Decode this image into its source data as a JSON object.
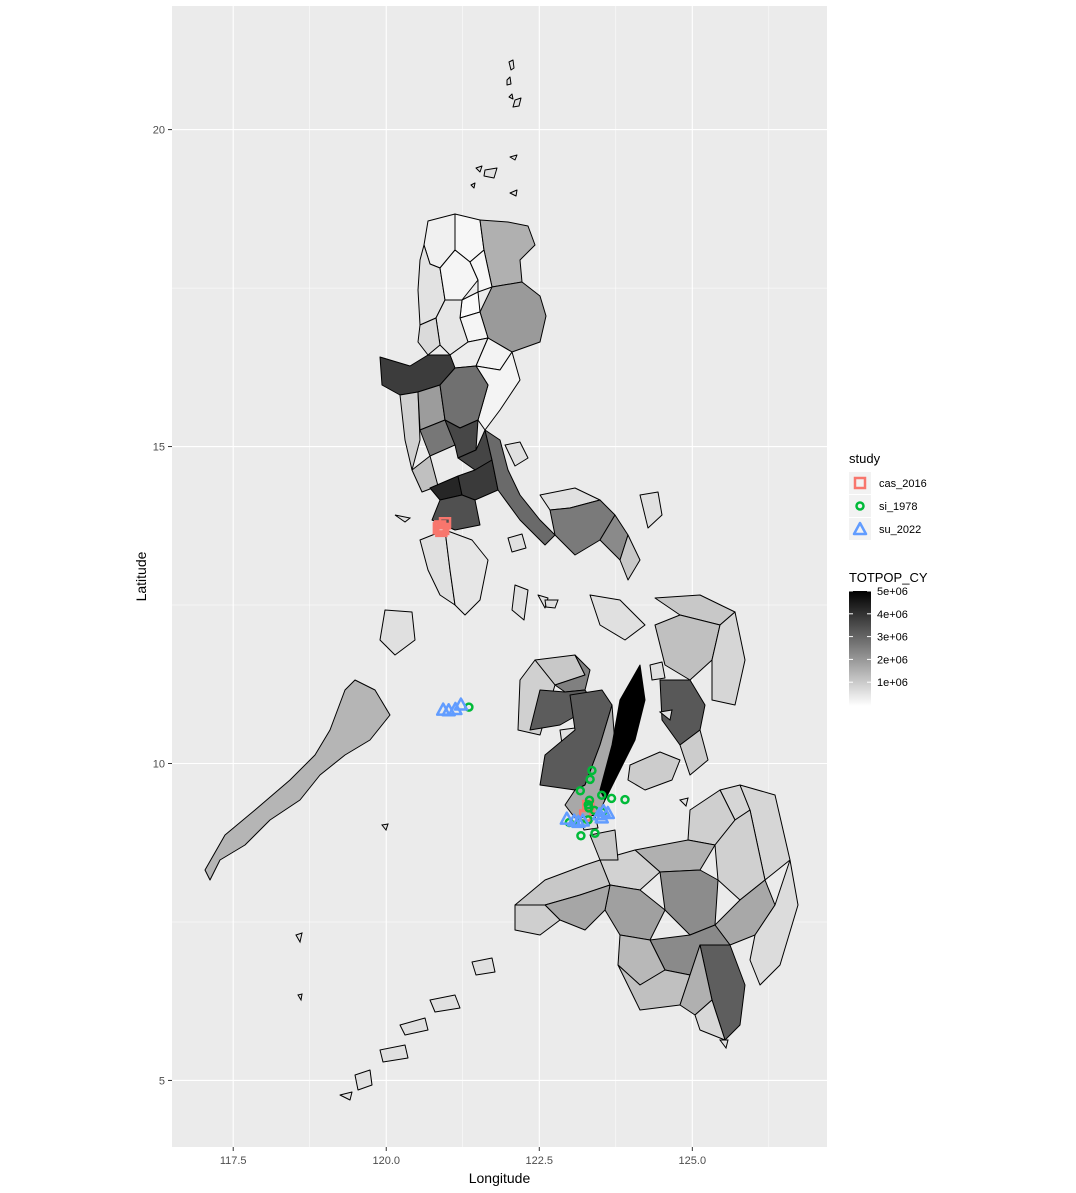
{
  "chart_data": {
    "type": "scatter",
    "title": "",
    "xlabel": "Longitude",
    "ylabel": "Latitude",
    "xlim": [
      116.5,
      127.2
    ],
    "ylim": [
      3.95,
      21.95
    ],
    "x_ticks": [
      117.5,
      120.0,
      122.5,
      125.0
    ],
    "x_tick_labels": [
      "117.5",
      "120.0",
      "122.5",
      "125.0"
    ],
    "y_ticks": [
      5,
      10,
      15,
      20
    ],
    "y_tick_labels": [
      "5",
      "10",
      "15",
      "20"
    ],
    "grid": true,
    "background": "#ebebeb",
    "legend_position": "right",
    "legend": {
      "title": "study",
      "entries": [
        {
          "label": "cas_2016",
          "color": "#F8766D",
          "shape": "square"
        },
        {
          "label": "si_1978",
          "color": "#00BA38",
          "shape": "circle"
        },
        {
          "label": "su_2022",
          "color": "#619CFF",
          "shape": "triangle"
        }
      ]
    },
    "fill_legend": {
      "title": "TOTPOP_CY",
      "labels": [
        "5e+06",
        "4e+06",
        "3e+06",
        "2e+06",
        "1e+06"
      ],
      "values": [
        5000000,
        4000000,
        3000000,
        2000000,
        1000000
      ],
      "range": [
        0,
        5000000
      ],
      "low_color": "#ffffff",
      "high_color": "#000000"
    },
    "series": [
      {
        "name": "cas_2016",
        "shape": "square",
        "color": "#F8766D",
        "points": [
          [
            120.88,
            13.74
          ],
          [
            120.93,
            13.7
          ],
          [
            120.9,
            13.67
          ],
          [
            120.96,
            13.79
          ],
          [
            120.86,
            13.71
          ],
          [
            123.3,
            9.33
          ],
          [
            123.25,
            9.18
          ]
        ]
      },
      {
        "name": "si_1978",
        "shape": "circle",
        "color": "#00BA38",
        "points": [
          [
            123.36,
            9.89
          ],
          [
            123.33,
            9.75
          ],
          [
            123.17,
            9.57
          ],
          [
            123.32,
            9.42
          ],
          [
            123.3,
            9.35
          ],
          [
            123.31,
            9.3
          ],
          [
            123.52,
            9.5
          ],
          [
            123.68,
            9.45
          ],
          [
            123.9,
            9.43
          ],
          [
            122.99,
            9.07
          ],
          [
            123.16,
            9.06
          ],
          [
            123.3,
            9.11
          ],
          [
            123.18,
            8.86
          ],
          [
            123.41,
            8.9
          ],
          [
            121.35,
            10.89
          ],
          [
            123.4,
            9.26
          ],
          [
            123.53,
            9.23
          ]
        ]
      },
      {
        "name": "su_2022",
        "shape": "triangle",
        "color": "#619CFF",
        "points": [
          [
            120.93,
            10.85
          ],
          [
            121.02,
            10.84
          ],
          [
            121.22,
            10.93
          ],
          [
            121.13,
            10.86
          ],
          [
            122.95,
            9.13
          ],
          [
            123.07,
            9.1
          ],
          [
            123.14,
            9.08
          ],
          [
            123.21,
            9.1
          ],
          [
            123.48,
            9.2
          ],
          [
            123.55,
            9.25
          ],
          [
            123.62,
            9.22
          ],
          [
            123.52,
            9.15
          ]
        ]
      }
    ]
  }
}
